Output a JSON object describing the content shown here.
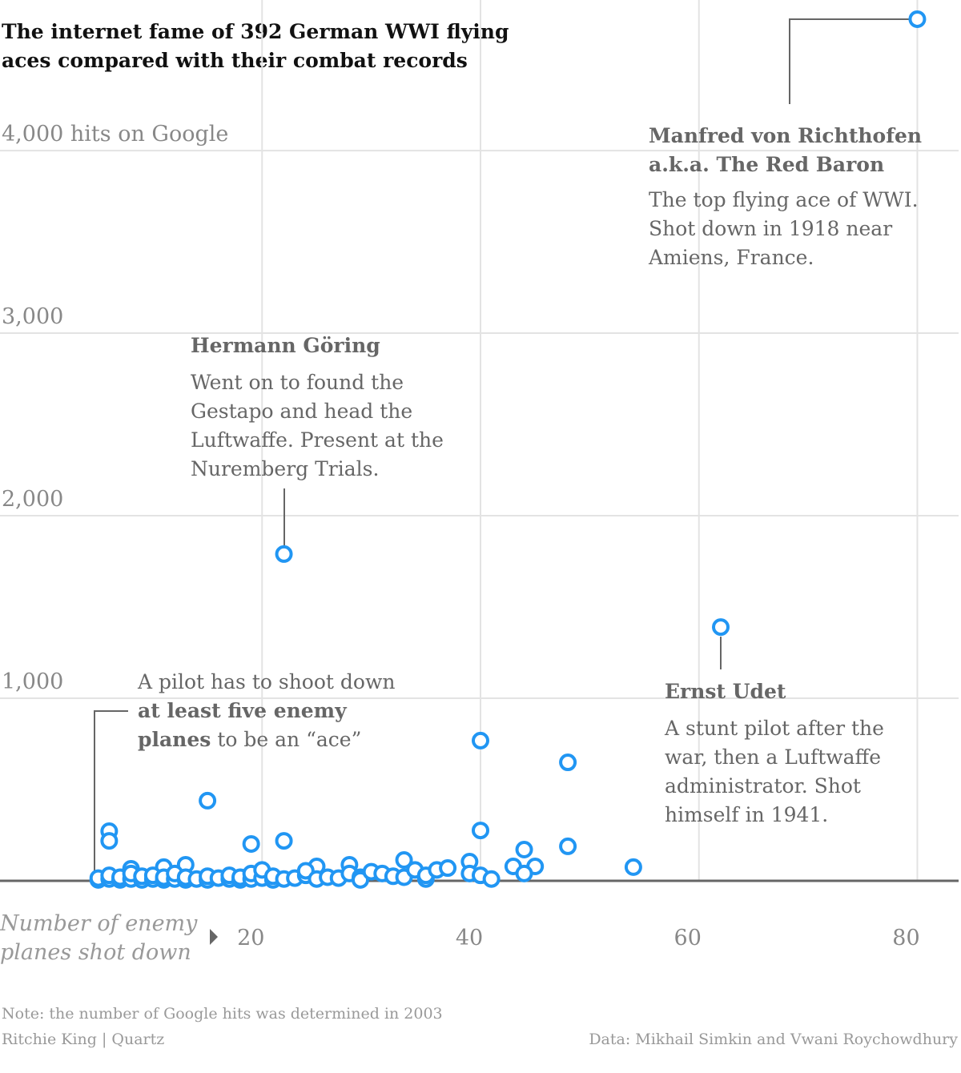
{
  "chart_data": {
    "type": "scatter",
    "title": [
      "The internet fame of 392 German WWI flying",
      "aces compared with their combat records"
    ],
    "x_label": [
      "Number of enemy",
      "planes shot down"
    ],
    "color": "#2196f3",
    "grid": true,
    "xlim": [
      -4,
      84
    ],
    "xticks": [
      20,
      40,
      60,
      80
    ],
    "ylim": [
      0,
      4825
    ],
    "yticks": [
      {
        "value": 1000,
        "label": "1,000"
      },
      {
        "value": 2000,
        "label": "2,000"
      },
      {
        "value": 3000,
        "label": "3,000"
      },
      {
        "value": 4000,
        "label": "4,000 hits on Google"
      }
    ],
    "x": [
      80,
      22,
      62,
      40,
      48,
      15,
      6,
      6,
      40,
      19,
      22,
      48,
      44,
      54,
      33,
      39,
      43,
      45,
      28,
      25,
      13,
      11,
      8,
      5,
      5,
      6,
      6,
      7,
      7,
      8,
      8,
      9,
      9,
      10,
      10,
      11,
      11,
      12,
      12,
      13,
      13,
      14,
      15,
      15,
      16,
      17,
      17,
      18,
      18,
      19,
      19,
      20,
      20,
      21,
      21,
      22,
      23,
      24,
      24,
      25,
      26,
      27,
      28,
      29,
      29,
      30,
      31,
      32,
      33,
      34,
      35,
      35,
      36,
      37,
      39,
      40,
      44,
      41
    ],
    "values": [
      4720,
      1790,
      1390,
      768,
      649,
      439,
      272,
      219,
      276,
      202,
      219,
      189,
      171,
      75,
      114,
      105,
      79,
      79,
      88,
      79,
      88,
      75,
      66,
      5,
      15,
      10,
      30,
      5,
      20,
      10,
      40,
      5,
      25,
      10,
      30,
      5,
      20,
      10,
      40,
      5,
      20,
      10,
      5,
      25,
      15,
      10,
      30,
      5,
      20,
      10,
      40,
      15,
      60,
      5,
      25,
      10,
      15,
      30,
      55,
      10,
      20,
      15,
      40,
      20,
      5,
      50,
      40,
      25,
      20,
      60,
      10,
      30,
      60,
      70,
      40,
      30,
      40,
      10
    ],
    "annotations": [
      {
        "title": [
          "Manfred von Richthofen",
          "a.k.a. The Red Baron"
        ],
        "text": [
          "The top flying ace of WWI.",
          "Shot down in 1918 near",
          "Amiens, France."
        ]
      },
      {
        "title": [
          "Hermann Göring"
        ],
        "text": [
          "Went on to found the",
          "Gestapo and head the",
          "Luftwaffe. Present at the",
          "Nuremberg Trials."
        ]
      },
      {
        "title": [
          "Ernst Udet"
        ],
        "text": [
          "A stunt pilot after the",
          "war, then a Luftwaffe",
          "administrator. Shot",
          "himself in 1941."
        ]
      }
    ],
    "ace_note": [
      "A pilot has to shoot down",
      "at least five enemy",
      "planes",
      "to be an “ace”"
    ],
    "note": "Note: the number of Google hits was determined in 2003",
    "credit": "Ritchie King | Quartz",
    "source": "Data: Mikhail Simkin and Vwani Roychowdhury"
  }
}
